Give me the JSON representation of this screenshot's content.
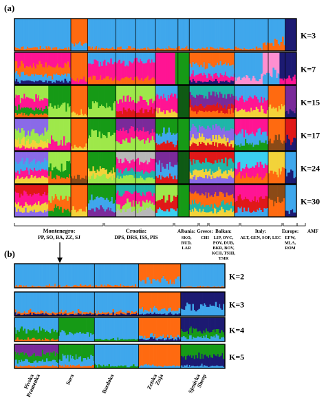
{
  "figure": {
    "panel_a_label": "(a)",
    "panel_b_label": "(b)"
  },
  "colors": {
    "light_blue": "#3fa7ec",
    "orange": "#ff6a10",
    "navy": "#1c1a72",
    "green": "#169a16",
    "lime": "#9ee84a",
    "magenta": "#ff1493",
    "pink": "#ff8fd0",
    "purple": "#7a2a9a",
    "yellow": "#f2d33a",
    "teal": "#1fb6a8",
    "brown": "#8b4a17",
    "red": "#e01818",
    "grey": "#b8b8b8",
    "cyan": "#3ad0f0",
    "dark_green": "#0f5a14",
    "violet": "#8a6ae8"
  },
  "chart_data": [
    {
      "type": "structure_barplot",
      "panel": "(a)",
      "rows": [
        "K=3",
        "K=7",
        "K=15",
        "K=17",
        "K=24",
        "K=30"
      ],
      "groups": [
        {
          "name": "Montenegro:",
          "members": "PP, SO, BA, ZZ, SJ"
        },
        {
          "name": "Croatia:",
          "members": "DPS, DRS, ISS, PIS"
        },
        {
          "name": "Albania:",
          "members": "SKO, RUD, LAR"
        },
        {
          "name": "Greece:",
          "members": "CHI"
        },
        {
          "name": "Balkan:",
          "members": "LIP, OVC, POV, DUB, BKR, BOV, KCH, TSHI, TSIR"
        },
        {
          "name": "Italy:",
          "members": "ALT, GEN, SOP, LEC"
        },
        {
          "name": "Europe:",
          "members": "EFW, MLA, ROM"
        },
        {
          "name": "AMF",
          "members": ""
        }
      ]
    },
    {
      "type": "structure_barplot",
      "panel": "(b)",
      "rows": [
        "K=2",
        "K=3",
        "K=4",
        "K=5"
      ],
      "populations": [
        "Pivska Pramenka",
        "Sora",
        "Bardoka",
        "Zetska Zuja",
        "Sjenicka Sheep"
      ]
    }
  ]
}
